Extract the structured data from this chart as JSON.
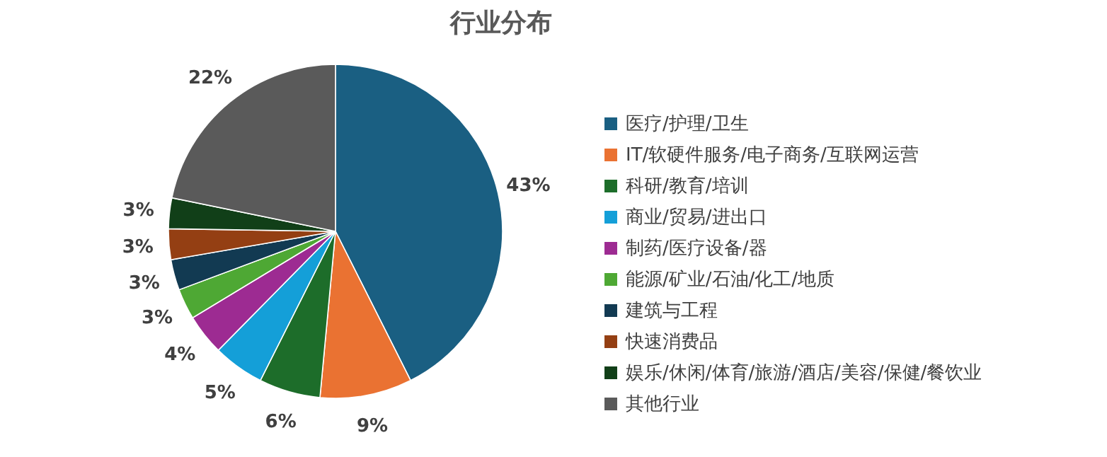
{
  "chart_data": {
    "type": "pie",
    "title": "行业分布",
    "categories": [
      "医疗/护理/卫生",
      "IT/软硬件服务/电子商务/互联网运营",
      "科研/教育/培训",
      "商业/贸易/进出口",
      "制药/医疗设备/器",
      "能源/矿业/石油/化工/地质",
      "建筑与工程",
      "快速消费品",
      "娱乐/休闲/体育/旅游/酒店/美容/保健/餐饮业",
      "其他行业"
    ],
    "values": [
      43,
      9,
      6,
      5,
      4,
      3,
      3,
      3,
      3,
      22
    ],
    "value_labels": [
      "43%",
      "9%",
      "6%",
      "5%",
      "4%",
      "3%",
      "3%",
      "3%",
      "3%",
      "22%"
    ],
    "colors": [
      "#1a5f82",
      "#ea7232",
      "#1d6d2a",
      "#149fd8",
      "#9d2b92",
      "#4ea834",
      "#123a52",
      "#943f13",
      "#113f18",
      "#5a5a5a"
    ],
    "legend": "right"
  }
}
